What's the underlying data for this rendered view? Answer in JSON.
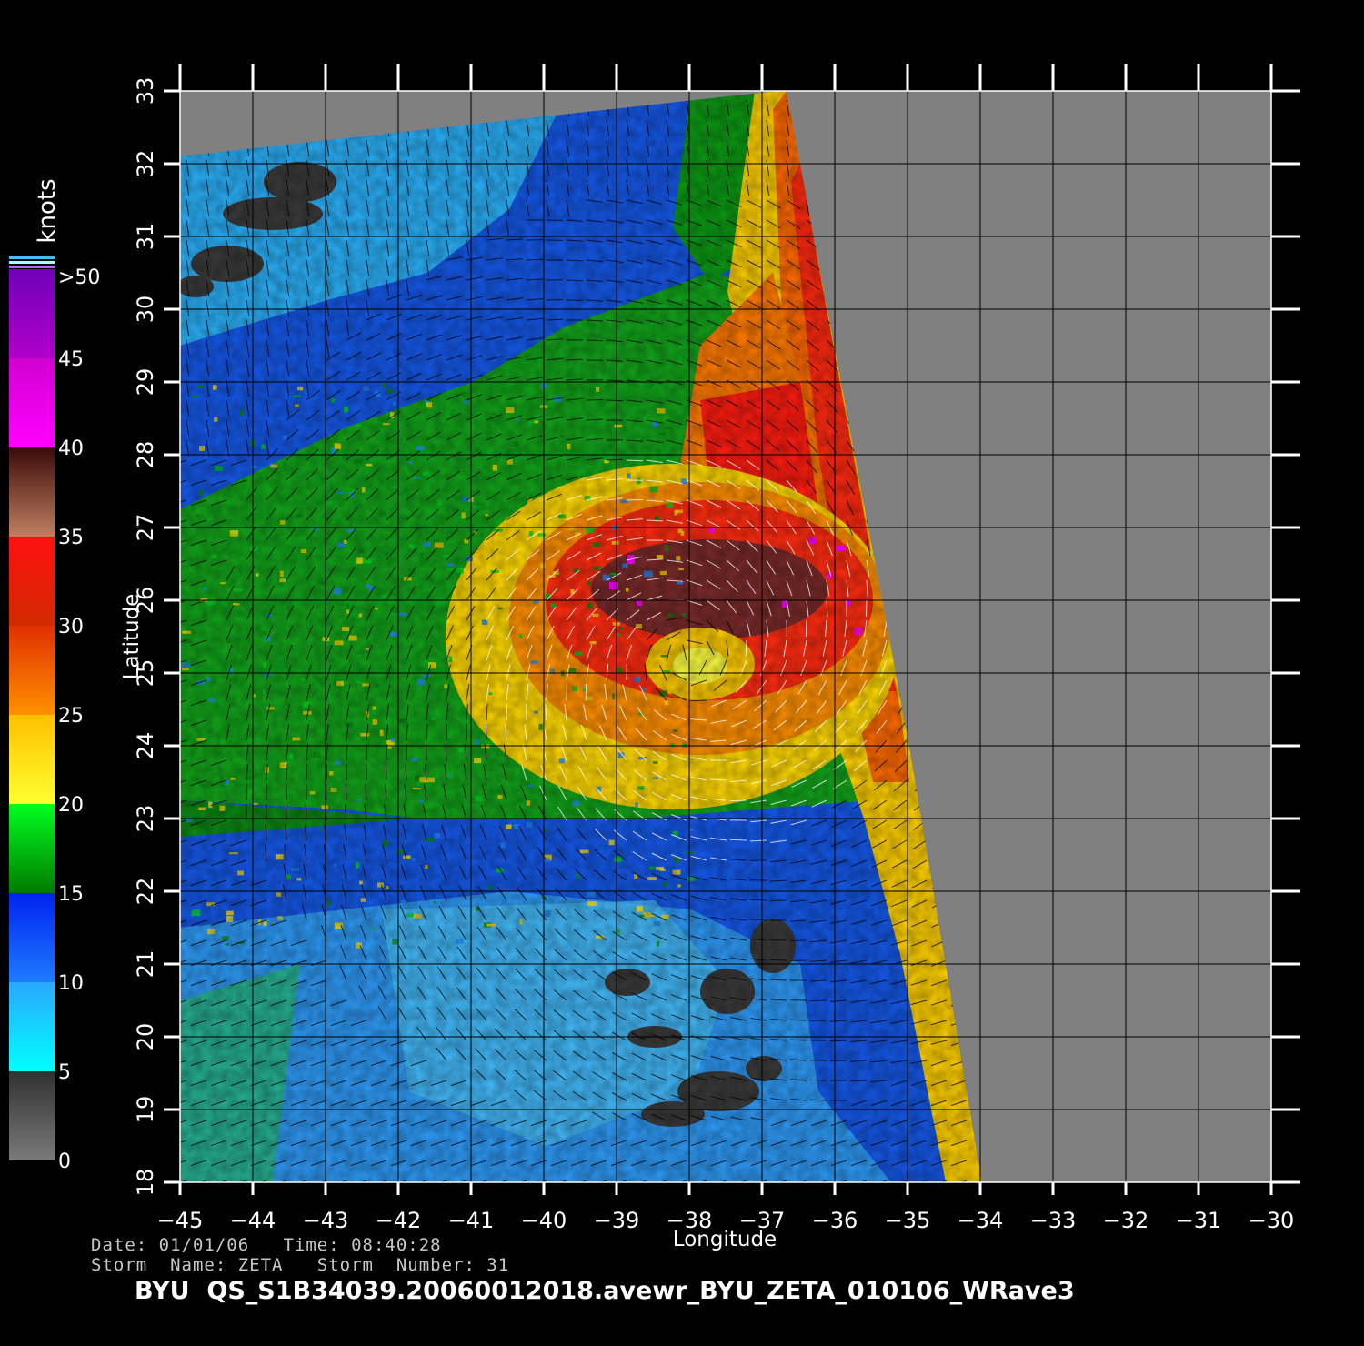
{
  "axes": {
    "xlabel": "Longitude",
    "ylabel": "Latitude",
    "lon_ticks": [
      "-45",
      "-44",
      "-43",
      "-42",
      "-41",
      "-40",
      "-39",
      "-38",
      "-37",
      "-36",
      "-35",
      "-34",
      "-33",
      "-32",
      "-31",
      "-30"
    ],
    "lat_ticks": [
      "33",
      "32",
      "31",
      "30",
      "29",
      "28",
      "27",
      "26",
      "25",
      "24",
      "23",
      "22",
      "21",
      "20",
      "19",
      "18"
    ]
  },
  "colorbar": {
    "unit": "knots",
    "labels": [
      ">50",
      "45",
      "40",
      "35",
      "30",
      "25",
      "20",
      "15",
      "10",
      "5",
      "0"
    ],
    "stops": [
      {
        "from": 0,
        "to": 5,
        "colors": [
          "#7a7a7a",
          "#303030"
        ]
      },
      {
        "from": 5,
        "to": 10,
        "colors": [
          "#00ffff",
          "#2aa8ff"
        ]
      },
      {
        "from": 10,
        "to": 15,
        "colors": [
          "#1e7cff",
          "#0022ee"
        ]
      },
      {
        "from": 15,
        "to": 20,
        "colors": [
          "#007a00",
          "#00ff20"
        ]
      },
      {
        "from": 20,
        "to": 25,
        "colors": [
          "#ffff30",
          "#ffc000"
        ]
      },
      {
        "from": 25,
        "to": 30,
        "colors": [
          "#ff9000",
          "#e03000"
        ]
      },
      {
        "from": 30,
        "to": 35,
        "colors": [
          "#d02a00",
          "#ff1010"
        ]
      },
      {
        "from": 35,
        "to": 40,
        "colors": [
          "#c08060",
          "#3a0a0a"
        ]
      },
      {
        "from": 40,
        "to": 45,
        "colors": [
          "#ff00ff",
          "#d000d0"
        ]
      },
      {
        "from": 45,
        "to": 50,
        "colors": [
          "#b000c8",
          "#7000b8"
        ]
      }
    ]
  },
  "map": {
    "lon_range": [
      -45,
      -30
    ],
    "lat_range": [
      18,
      33
    ],
    "no_data_color": "#808080",
    "storm_center": {
      "lon": -38.0,
      "lat": 25.2
    }
  },
  "footer": {
    "date_line": "Date: 01/01/06   Time: 08:40:28",
    "storm_line": "Storm  Name: ZETA   Storm  Number: 31",
    "product": "BYU  QS_S1B34039.20060012018.avewr_BYU_ZETA_010106_WRave3"
  }
}
